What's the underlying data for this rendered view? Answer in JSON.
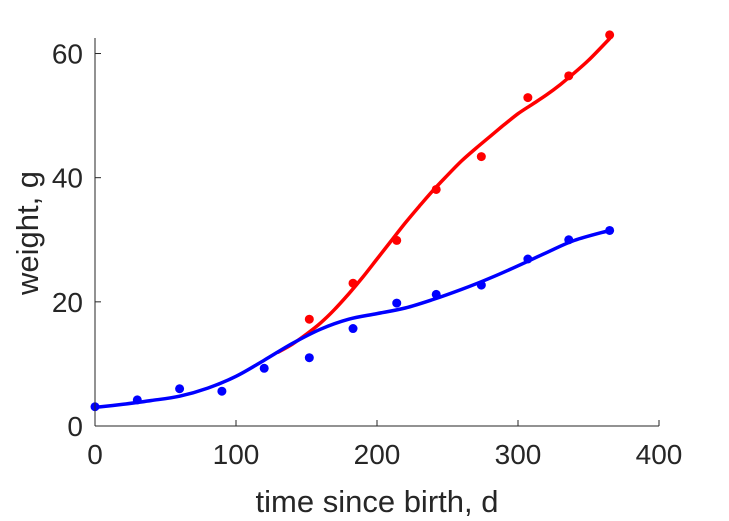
{
  "chart_data": {
    "type": "scatter",
    "xlabel": "time since birth, d",
    "ylabel": "weight, g",
    "xlim": [
      0,
      400
    ],
    "ylim": [
      0,
      62.5
    ],
    "xticks": [
      0,
      100,
      200,
      300,
      400
    ],
    "yticks": [
      0,
      20,
      40,
      60
    ],
    "grid": false,
    "legend": "none",
    "series": [
      {
        "color": "#ff0000",
        "points": {
          "x": [
            152,
            183,
            214,
            242,
            274,
            307,
            336,
            365
          ],
          "y": [
            17.2,
            23.0,
            29.9,
            38.1,
            43.4,
            52.9,
            56.4,
            63.0
          ]
        },
        "fit": {
          "x": [
            130,
            140,
            150,
            160,
            170,
            180,
            190,
            200,
            210,
            220,
            230,
            240,
            250,
            260,
            270,
            280,
            290,
            300,
            310,
            320,
            330,
            340,
            350,
            365
          ],
          "y": [
            11.9,
            13.2,
            14.8,
            16.6,
            18.8,
            21.3,
            24.0,
            26.9,
            29.8,
            32.7,
            35.4,
            38.0,
            40.4,
            42.7,
            44.7,
            46.6,
            48.5,
            50.3,
            51.8,
            53.3,
            55.0,
            56.9,
            58.9,
            62.4
          ]
        }
      },
      {
        "color": "#0000ff",
        "points": {
          "x": [
            0,
            30,
            60,
            90,
            120,
            152,
            183,
            214,
            242,
            274,
            307,
            336,
            365
          ],
          "y": [
            3.1,
            4.2,
            6.0,
            5.6,
            9.3,
            11.0,
            15.7,
            19.8,
            21.2,
            22.7,
            26.9,
            30.0,
            31.5
          ]
        },
        "fit": {
          "x": [
            0,
            20,
            40,
            60,
            80,
            100,
            120,
            140,
            160,
            180,
            200,
            220,
            240,
            260,
            280,
            300,
            320,
            340,
            365
          ],
          "y": [
            3.0,
            3.5,
            4.1,
            4.8,
            6.1,
            8.0,
            10.6,
            13.3,
            15.6,
            17.2,
            18.1,
            19.0,
            20.4,
            22.0,
            23.8,
            25.8,
            27.9,
            29.9,
            31.5
          ]
        }
      }
    ]
  }
}
